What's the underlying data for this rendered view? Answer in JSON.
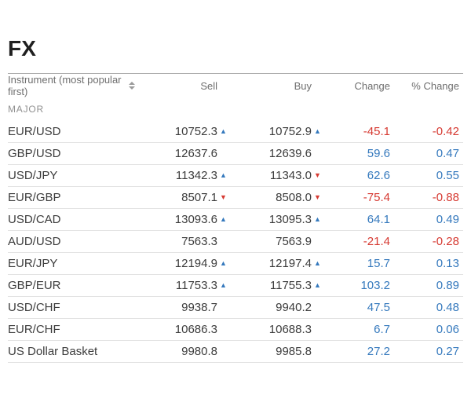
{
  "page": {
    "title": "FX"
  },
  "colors": {
    "positive_blue": "#3579bd",
    "negative_red": "#d63a32",
    "up_arrow": "#3579bd",
    "down_arrow": "#d63a32"
  },
  "icons": {
    "sort_icon": "sort-up-down-triangles",
    "up_arrow_glyph": "▲",
    "down_arrow_glyph": "▼"
  },
  "table": {
    "columns": {
      "instrument": "Instrument (most popular first)",
      "sell": "Sell",
      "buy": "Buy",
      "change": "Change",
      "pct_change": "% Change"
    },
    "section": "MAJOR",
    "rows": [
      {
        "instrument": "EUR/USD",
        "sell": "10752.3",
        "sell_dir": "up",
        "buy": "10752.9",
        "buy_dir": "up",
        "change": "-45.1",
        "pct_change": "-0.42"
      },
      {
        "instrument": "GBP/USD",
        "sell": "12637.6",
        "sell_dir": "none",
        "buy": "12639.6",
        "buy_dir": "none",
        "change": "59.6",
        "pct_change": "0.47"
      },
      {
        "instrument": "USD/JPY",
        "sell": "11342.3",
        "sell_dir": "up",
        "buy": "11343.0",
        "buy_dir": "down",
        "change": "62.6",
        "pct_change": "0.55"
      },
      {
        "instrument": "EUR/GBP",
        "sell": "8507.1",
        "sell_dir": "down",
        "buy": "8508.0",
        "buy_dir": "down",
        "change": "-75.4",
        "pct_change": "-0.88"
      },
      {
        "instrument": "USD/CAD",
        "sell": "13093.6",
        "sell_dir": "up",
        "buy": "13095.3",
        "buy_dir": "up",
        "change": "64.1",
        "pct_change": "0.49"
      },
      {
        "instrument": "AUD/USD",
        "sell": "7563.3",
        "sell_dir": "none",
        "buy": "7563.9",
        "buy_dir": "none",
        "change": "-21.4",
        "pct_change": "-0.28"
      },
      {
        "instrument": "EUR/JPY",
        "sell": "12194.9",
        "sell_dir": "up",
        "buy": "12197.4",
        "buy_dir": "up",
        "change": "15.7",
        "pct_change": "0.13"
      },
      {
        "instrument": "GBP/EUR",
        "sell": "11753.3",
        "sell_dir": "up",
        "buy": "11755.3",
        "buy_dir": "up",
        "change": "103.2",
        "pct_change": "0.89"
      },
      {
        "instrument": "USD/CHF",
        "sell": "9938.7",
        "sell_dir": "none",
        "buy": "9940.2",
        "buy_dir": "none",
        "change": "47.5",
        "pct_change": "0.48"
      },
      {
        "instrument": "EUR/CHF",
        "sell": "10686.3",
        "sell_dir": "none",
        "buy": "10688.3",
        "buy_dir": "none",
        "change": "6.7",
        "pct_change": "0.06"
      },
      {
        "instrument": "US Dollar Basket",
        "sell": "9980.8",
        "sell_dir": "none",
        "buy": "9985.8",
        "buy_dir": "none",
        "change": "27.2",
        "pct_change": "0.27"
      }
    ]
  }
}
